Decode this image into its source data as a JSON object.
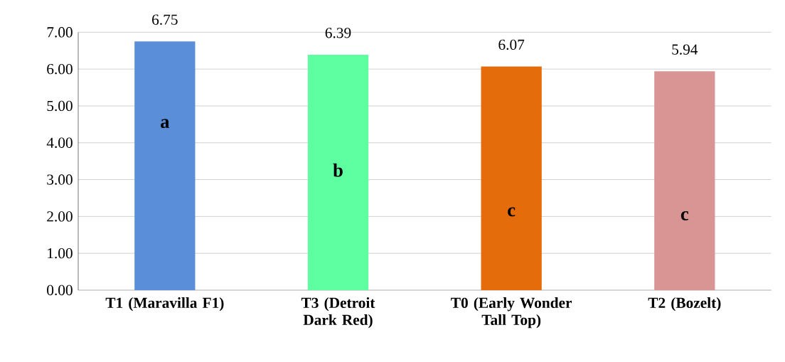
{
  "chart_data": {
    "type": "bar",
    "categories": [
      "T1 (Maravilla F1)",
      "T3 (Detroit Dark Red)",
      "T0 (Early Wonder Tall Top)",
      "T2 (Bozelt)"
    ],
    "values": [
      6.75,
      6.39,
      6.07,
      5.94
    ],
    "colors": [
      "#5b8ed8",
      "#5effa0",
      "#e46c0a",
      "#d99594"
    ],
    "data_labels": true,
    "ylim": [
      0,
      7
    ],
    "yticks": [
      {
        "value": 0,
        "label": "0.00"
      },
      {
        "value": 1,
        "label": "1.00"
      },
      {
        "value": 2,
        "label": "2.00"
      },
      {
        "value": 3,
        "label": "3.00"
      },
      {
        "value": 4,
        "label": "4.00"
      },
      {
        "value": 5,
        "label": "5.00"
      },
      {
        "value": 6,
        "label": "6.00"
      },
      {
        "value": 7,
        "label": "7.00"
      }
    ],
    "grid": "y",
    "annotations": [
      "a",
      "b",
      "c",
      "c"
    ]
  }
}
